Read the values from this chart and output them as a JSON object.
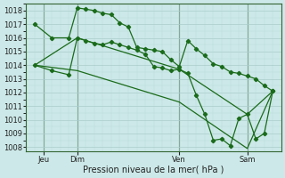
{
  "background_color": "#cce8e8",
  "grid_color": "#aacccc",
  "line_color": "#1a6b1a",
  "ylabel_min": 1008,
  "ylabel_max": 1018,
  "yticks": [
    1008,
    1009,
    1010,
    1011,
    1012,
    1013,
    1014,
    1015,
    1016,
    1017,
    1018
  ],
  "xlabel": "Pression niveau de la mer( hPa )",
  "day_labels": [
    "Jeu",
    "Dim",
    "Ven",
    "Sam"
  ],
  "day_positions": [
    1,
    3,
    9,
    13
  ],
  "line1_x": [
    0.5,
    1.5,
    2.5,
    3.0,
    3.5,
    4.0,
    4.5,
    5.0,
    5.5,
    6.0,
    6.5,
    7.0,
    7.5,
    8.0,
    8.5,
    9.0,
    9.5,
    10.0,
    10.5,
    11.0,
    11.5,
    12.0,
    12.5,
    13.0,
    13.5,
    14.0,
    14.5
  ],
  "line1_y": [
    1017.0,
    1016.0,
    1016.0,
    1018.2,
    1018.1,
    1018.0,
    1017.8,
    1017.7,
    1017.1,
    1016.8,
    1015.3,
    1015.2,
    1015.1,
    1015.0,
    1014.4,
    1013.9,
    1015.8,
    1015.2,
    1014.7,
    1014.1,
    1013.9,
    1013.5,
    1013.4,
    1013.2,
    1013.0,
    1012.5,
    1012.1
  ],
  "line2_x": [
    0.5,
    1.5,
    2.5,
    3.0,
    3.5,
    4.0,
    4.5,
    5.0,
    5.5,
    6.0,
    6.5,
    7.0,
    7.5,
    8.0,
    8.5,
    9.0,
    9.5,
    10.0,
    10.5,
    11.0,
    11.5,
    12.0,
    12.5,
    13.0,
    13.5,
    14.0,
    14.5
  ],
  "line2_y": [
    1014.0,
    1013.6,
    1013.3,
    1016.0,
    1015.8,
    1015.6,
    1015.5,
    1015.7,
    1015.5,
    1015.3,
    1015.1,
    1014.8,
    1013.9,
    1013.8,
    1013.6,
    1013.7,
    1013.4,
    1011.8,
    1010.4,
    1008.5,
    1008.6,
    1008.1,
    1010.1,
    1010.4,
    1008.6,
    1009.0,
    1012.1
  ],
  "line3_x": [
    0.5,
    3.0,
    9.0,
    13.0,
    14.5
  ],
  "line3_y": [
    1014.0,
    1016.0,
    1013.7,
    1010.4,
    1012.1
  ],
  "line4_x": [
    0.5,
    3.0,
    9.0,
    13.0,
    14.5
  ],
  "line4_y": [
    1014.0,
    1013.6,
    1011.3,
    1007.9,
    1012.1
  ],
  "xmin": 0.0,
  "xmax": 15.0,
  "figw": 3.2,
  "figh": 2.0,
  "dpi": 100
}
